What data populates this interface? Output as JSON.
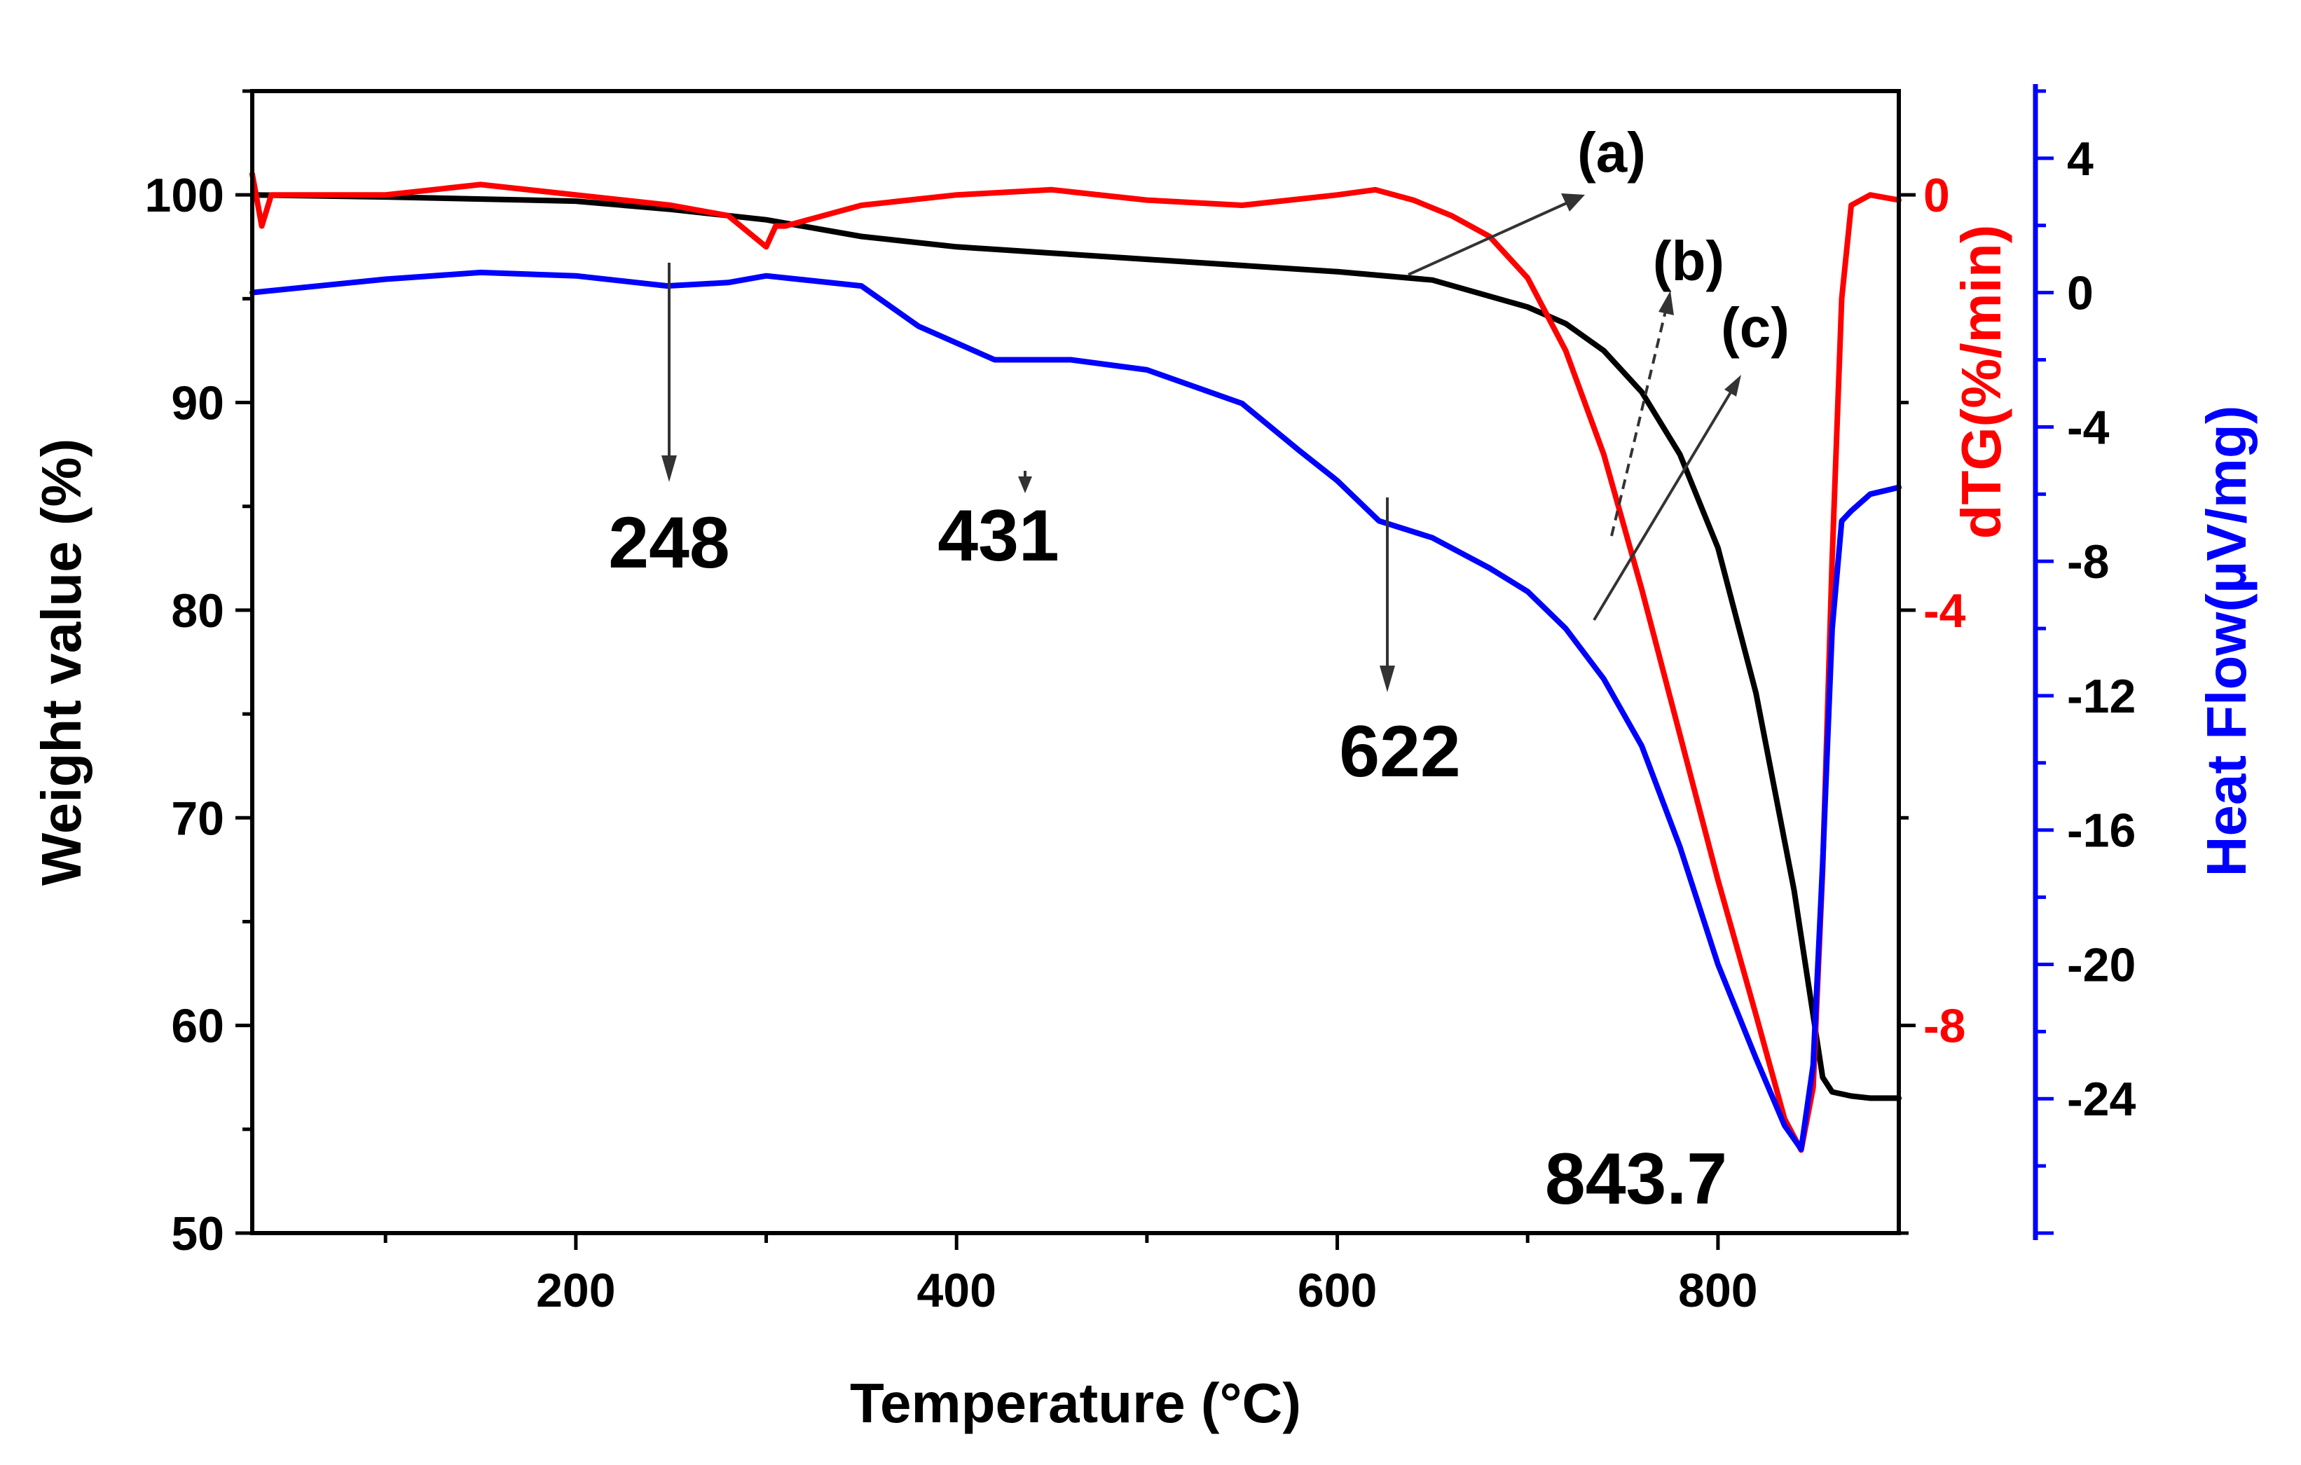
{
  "chart_data": {
    "type": "line",
    "title": "",
    "xlabel": "Temperature (°C)",
    "xlim": [
      30,
      895
    ],
    "x_ticks": [
      "200",
      "400",
      "600",
      "800"
    ],
    "y_axes": [
      {
        "id": "weight",
        "label": "Weight value (%)",
        "range": [
          50,
          105
        ],
        "ticks": [
          "50",
          "60",
          "70",
          "80",
          "90",
          "100"
        ],
        "color": "#000000"
      },
      {
        "id": "dtg",
        "label": "dTG(%/min)",
        "range": [
          -10,
          1
        ],
        "ticks": [
          "-8",
          "-4",
          "0"
        ],
        "color": "#ff0000"
      },
      {
        "id": "heat",
        "label": "Heat Flow(µV/mg)",
        "range": [
          -28,
          6
        ],
        "ticks": [
          "-24",
          "-20",
          "-16",
          "-12",
          "-8",
          "-4",
          "0",
          "4"
        ],
        "color": "#0000ff"
      }
    ],
    "series": [
      {
        "name": "(a)",
        "axis": "weight",
        "color": "#000000",
        "x": [
          30,
          100,
          200,
          250,
          300,
          350,
          400,
          450,
          500,
          550,
          600,
          650,
          700,
          720,
          740,
          760,
          780,
          800,
          820,
          840,
          850,
          855,
          860,
          870,
          880,
          895
        ],
        "y": [
          100,
          99.9,
          99.7,
          99.3,
          98.8,
          98.0,
          97.5,
          97.2,
          96.9,
          96.6,
          96.3,
          95.9,
          94.6,
          93.8,
          92.5,
          90.5,
          87.5,
          83.0,
          76.0,
          66.5,
          60.5,
          57.5,
          56.8,
          56.6,
          56.5,
          56.5
        ]
      },
      {
        "name": "(b)",
        "axis": "dtg",
        "color": "#ff0000",
        "x": [
          30,
          35,
          40,
          100,
          150,
          200,
          250,
          280,
          300,
          305,
          310,
          330,
          350,
          400,
          450,
          500,
          550,
          600,
          620,
          640,
          660,
          680,
          700,
          720,
          740,
          760,
          780,
          800,
          820,
          835,
          843.7,
          850,
          855,
          860,
          865,
          870,
          880,
          895
        ],
        "y": [
          0.2,
          -0.3,
          0,
          0,
          0.1,
          0,
          -0.1,
          -0.2,
          -0.5,
          -0.3,
          -0.3,
          -0.2,
          -0.1,
          0,
          0.05,
          -0.05,
          -0.1,
          0,
          0.05,
          -0.05,
          -0.2,
          -0.4,
          -0.8,
          -1.5,
          -2.5,
          -3.8,
          -5.2,
          -6.6,
          -7.9,
          -8.9,
          -9.2,
          -8.6,
          -6.5,
          -3.5,
          -1.0,
          -0.1,
          0,
          -0.05
        ]
      },
      {
        "name": "(c)",
        "axis": "heat",
        "color": "#0000ff",
        "x": [
          30,
          100,
          150,
          200,
          248,
          280,
          300,
          350,
          380,
          420,
          431,
          460,
          500,
          550,
          580,
          600,
          622,
          650,
          680,
          700,
          720,
          740,
          760,
          780,
          800,
          820,
          835,
          843.7,
          850,
          855,
          860,
          865,
          870,
          880,
          895
        ],
        "y": [
          0,
          0.4,
          0.6,
          0.5,
          0.2,
          0.3,
          0.5,
          0.2,
          -1.0,
          -2.0,
          -2.0,
          -2.0,
          -2.3,
          -3.3,
          -4.7,
          -5.6,
          -6.8,
          -7.3,
          -8.2,
          -8.9,
          -10.0,
          -11.5,
          -13.5,
          -16.5,
          -20.0,
          -22.8,
          -24.8,
          -25.5,
          -23.0,
          -17.0,
          -10.0,
          -6.8,
          -6.5,
          -6.0,
          -5.8
        ]
      }
    ],
    "annotations": [
      {
        "text": "248",
        "x": 248,
        "series": "(c)"
      },
      {
        "text": "431",
        "x": 431,
        "series": "(c)"
      },
      {
        "text": "622",
        "x": 622,
        "series": "(c)"
      },
      {
        "text": "843.7",
        "x": 843.7,
        "series": "(b)"
      }
    ],
    "curve_labels": [
      "(a)",
      "(b)",
      "(c)"
    ],
    "legend": "none",
    "grid": false
  }
}
